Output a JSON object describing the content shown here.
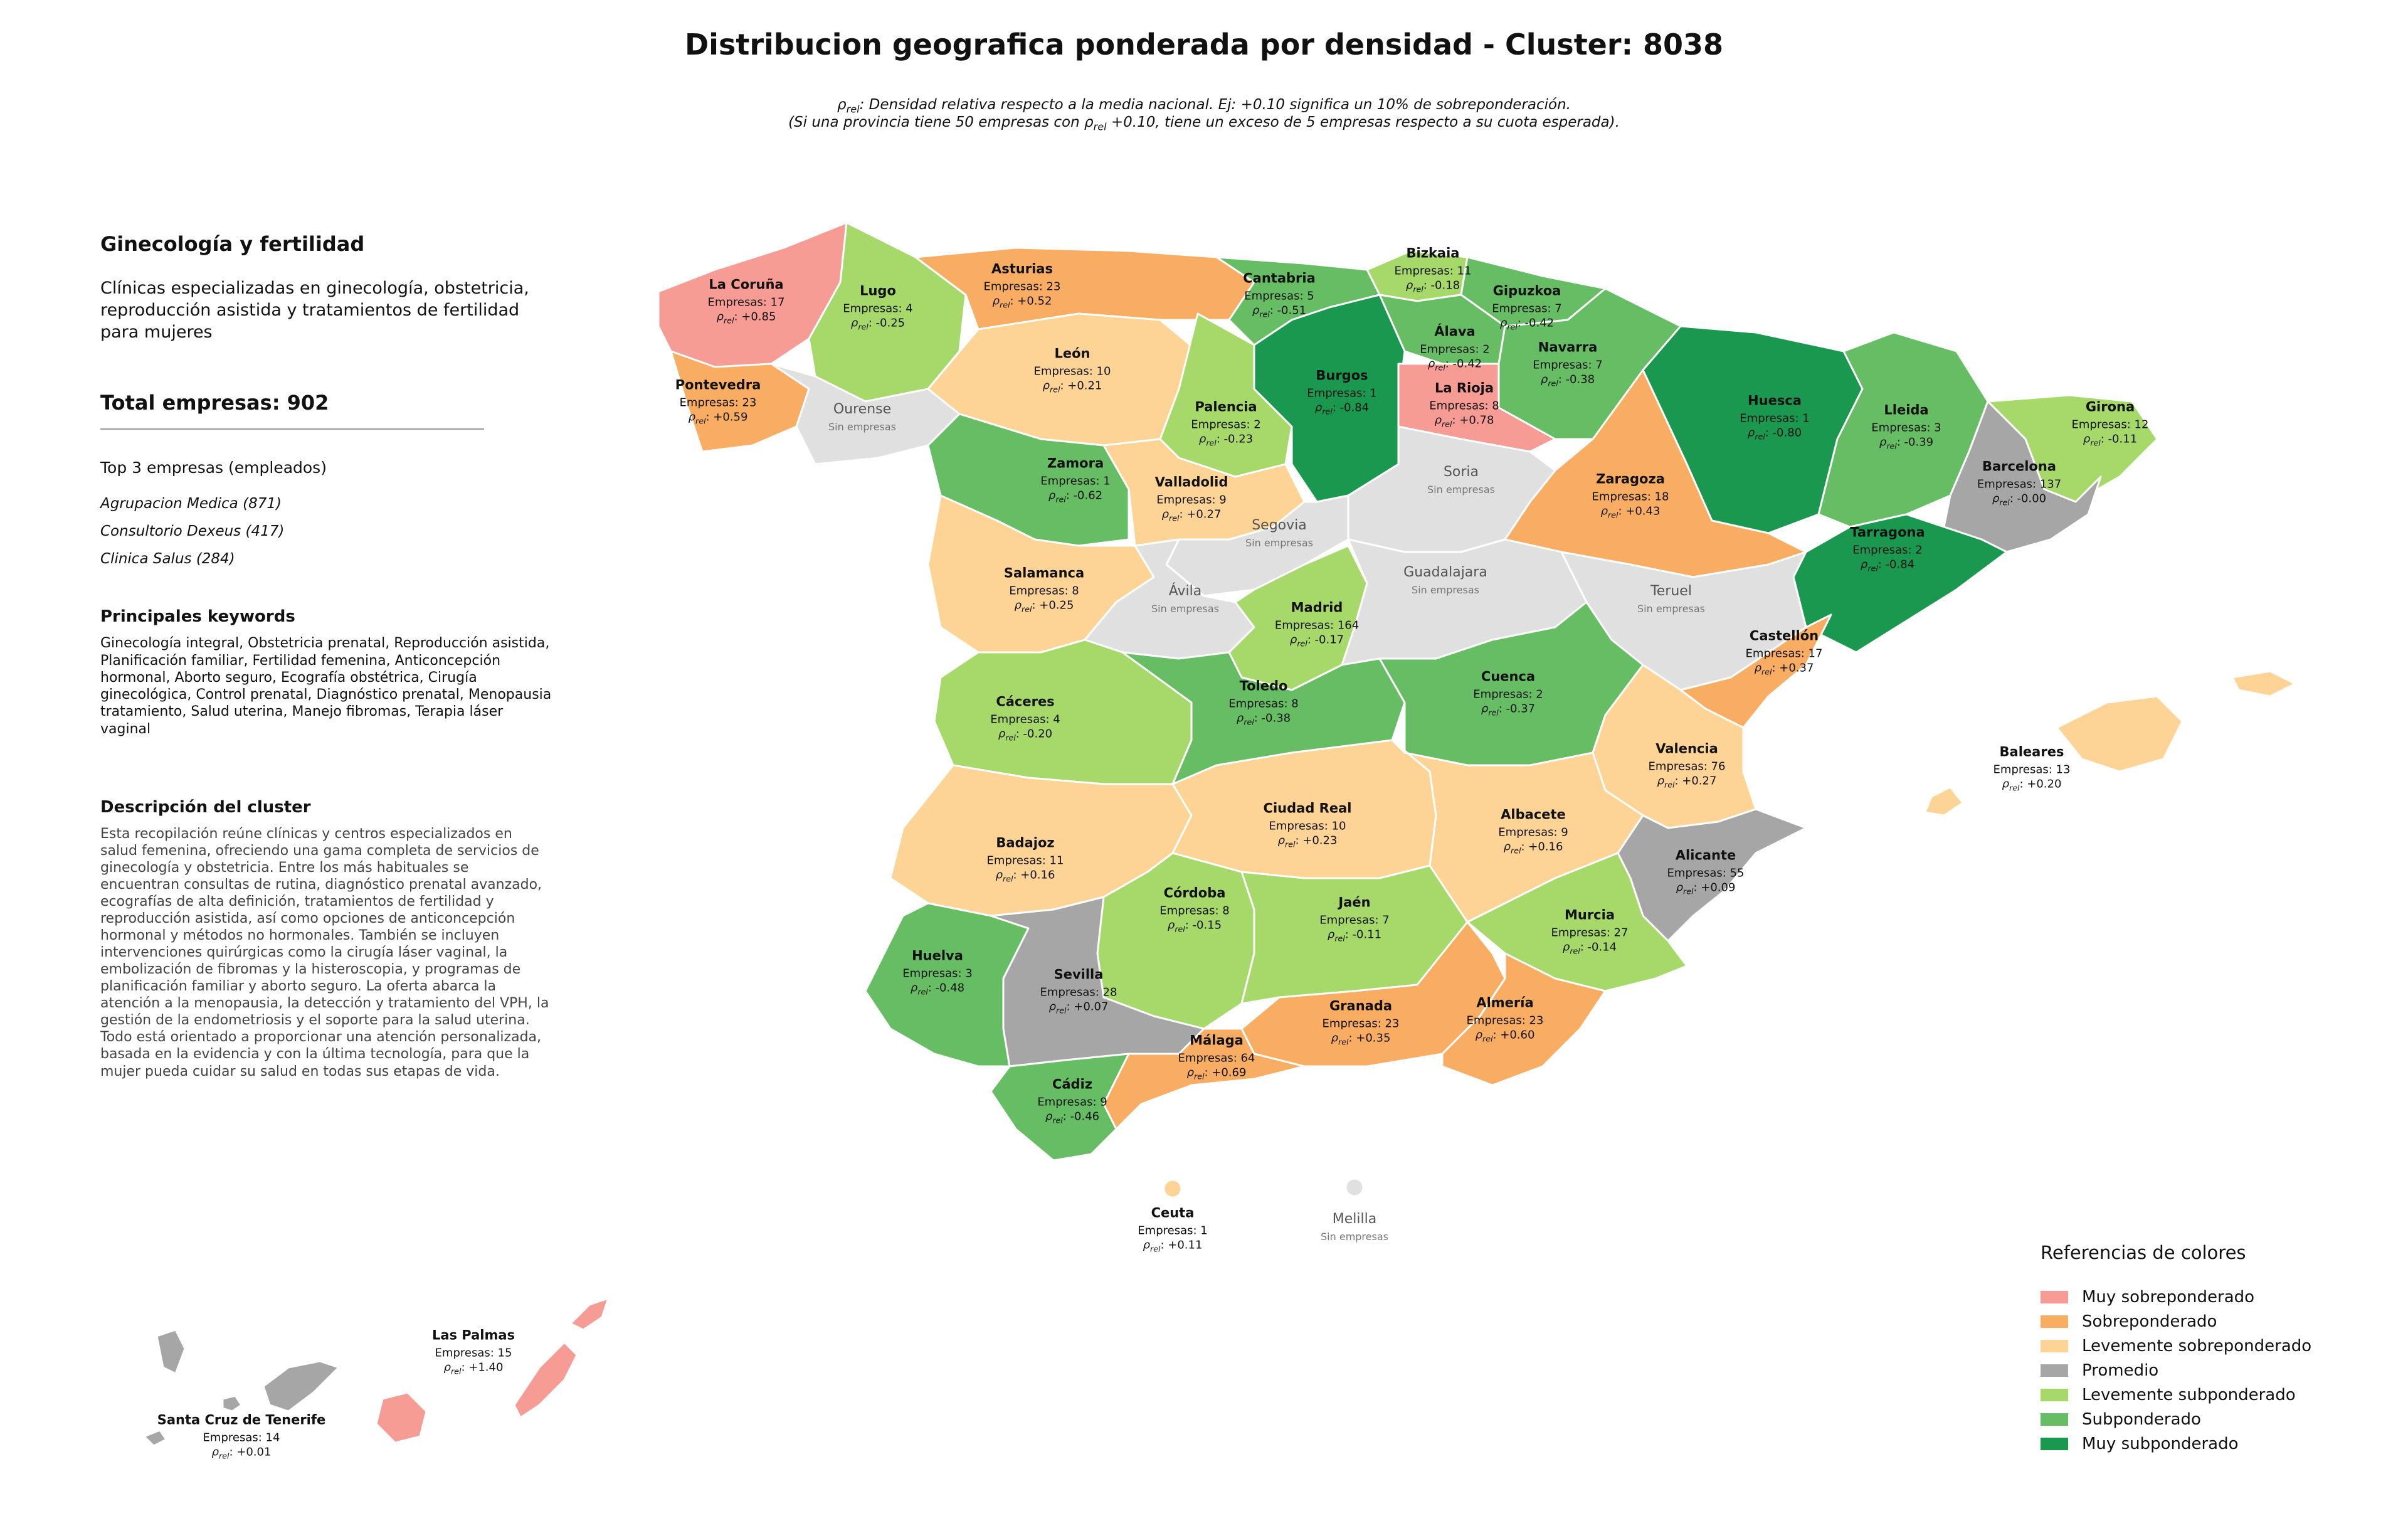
{
  "title": "Distribucion geografica ponderada por densidad - Cluster: 8038",
  "subtitle_line1_rest": ": Densidad relativa respecto a la media nacional. Ej: +0.10 significa un 10% de sobreponderación.",
  "subtitle_line2_a": "(Si una provincia tiene 50 empresas con ",
  "subtitle_line2_b": " +0.10, tiene un exceso de 5 empresas respecto a su cuota esperada).",
  "rho_symbol": "ρ",
  "rho_sub": "rel",
  "sidebar": {
    "cluster_name": "Ginecología y fertilidad",
    "cluster_short": "Clínicas especializadas en ginecología, obstetricia, reproducción asistida y tratamientos de fertilidad para mujeres",
    "total": "Total empresas: 902",
    "top_heading": "Top 3 empresas (empleados)",
    "top": [
      "Agrupacion Medica (871)",
      "Consultorio Dexeus (417)",
      "Clinica Salus (284)"
    ],
    "keywords_heading": "Principales keywords",
    "keywords": "Ginecología integral, Obstetricia prenatal, Reproducción asistida, Planificación familiar, Fertilidad femenina, Anticoncepción hormonal, Aborto seguro, Ecografía obstétrica, Cirugía ginecológica, Control prenatal, Diagnóstico prenatal, Menopausia tratamiento, Salud uterina, Manejo fibromas, Terapia láser vaginal",
    "description_heading": "Descripción del cluster",
    "description": "Esta recopilación reúne clínicas y centros especializados en salud femenina, ofreciendo una gama completa de servicios de ginecología y obstetricia. Entre los más habituales se encuentran consultas de rutina, diagnóstico prenatal avanzado, ecografías de alta definición, tratamientos de fertilidad y reproducción asistida, así como opciones de anticoncepción hormonal y métodos no hormonales. También se incluyen intervenciones quirúrgicas como la cirugía láser vaginal, la embolización de fibromas y la histeroscopia, y programas de planificación familiar y aborto seguro. La oferta abarca la atención a la menopausia, la detección y tratamiento del VPH, la gestión de la endometriosis y el soporte para la salud uterina. Todo está orientado a proporcionar una atención personalizada, basada en la evidencia y con la última tecnología, para que la mujer pueda cuidar su salud en todas sus etapas de vida."
  },
  "empresas_prefix": "Empresas: ",
  "sin_empresas": "Sin empresas",
  "colors": {
    "muy_sobre": "#f79b95",
    "sobre": "#f8ad62",
    "lev_sobre": "#fdd496",
    "promedio": "#a6a6a6",
    "lev_sub": "#a6d96a",
    "sub": "#66bd63",
    "muy_sub": "#1a9850",
    "none": "#e0e0e0"
  },
  "legend": {
    "title": "Referencias de colores",
    "items": [
      {
        "label": "Muy sobreponderado",
        "color": "#f79b95"
      },
      {
        "label": "Sobreponderado",
        "color": "#f8ad62"
      },
      {
        "label": "Levemente sobreponderado",
        "color": "#fdd496"
      },
      {
        "label": "Promedio",
        "color": "#a6a6a6"
      },
      {
        "label": "Levemente subponderado",
        "color": "#a6d96a"
      },
      {
        "label": "Subponderado",
        "color": "#66bd63"
      },
      {
        "label": "Muy subponderado",
        "color": "#1a9850"
      }
    ]
  },
  "provinces": [
    {
      "name": "La Coruña",
      "empresas": "17",
      "rho": "+0.85",
      "cat": "muy_sobre"
    },
    {
      "name": "Lugo",
      "empresas": "4",
      "rho": "-0.25",
      "cat": "lev_sub"
    },
    {
      "name": "Asturias",
      "empresas": "23",
      "rho": "+0.52",
      "cat": "sobre"
    },
    {
      "name": "Cantabria",
      "empresas": "5",
      "rho": "-0.51",
      "cat": "sub"
    },
    {
      "name": "Bizkaia",
      "empresas": "11",
      "rho": "-0.18",
      "cat": "lev_sub"
    },
    {
      "name": "Gipuzkoa",
      "empresas": "7",
      "rho": "-0.42",
      "cat": "sub"
    },
    {
      "name": "Álava",
      "empresas": "2",
      "rho": "-0.42",
      "cat": "sub"
    },
    {
      "name": "Navarra",
      "empresas": "7",
      "rho": "-0.38",
      "cat": "sub"
    },
    {
      "name": "Huesca",
      "empresas": "1",
      "rho": "-0.80",
      "cat": "muy_sub"
    },
    {
      "name": "Lleida",
      "empresas": "3",
      "rho": "-0.39",
      "cat": "sub"
    },
    {
      "name": "Girona",
      "empresas": "12",
      "rho": "-0.11",
      "cat": "lev_sub"
    },
    {
      "name": "Pontevedra",
      "empresas": "23",
      "rho": "+0.59",
      "cat": "sobre"
    },
    {
      "name": "Ourense",
      "empresas": null,
      "rho": null,
      "cat": "none"
    },
    {
      "name": "León",
      "empresas": "10",
      "rho": "+0.21",
      "cat": "lev_sobre"
    },
    {
      "name": "Palencia",
      "empresas": "2",
      "rho": "-0.23",
      "cat": "lev_sub"
    },
    {
      "name": "Burgos",
      "empresas": "1",
      "rho": "-0.84",
      "cat": "muy_sub"
    },
    {
      "name": "La Rioja",
      "empresas": "8",
      "rho": "+0.78",
      "cat": "muy_sobre"
    },
    {
      "name": "Zaragoza",
      "empresas": "18",
      "rho": "+0.43",
      "cat": "sobre"
    },
    {
      "name": "Barcelona",
      "empresas": "137",
      "rho": "-0.00",
      "cat": "promedio"
    },
    {
      "name": "Tarragona",
      "empresas": "2",
      "rho": "-0.84",
      "cat": "muy_sub"
    },
    {
      "name": "Zamora",
      "empresas": "1",
      "rho": "-0.62",
      "cat": "sub"
    },
    {
      "name": "Valladolid",
      "empresas": "9",
      "rho": "+0.27",
      "cat": "lev_sobre"
    },
    {
      "name": "Soria",
      "empresas": null,
      "rho": null,
      "cat": "none"
    },
    {
      "name": "Segovia",
      "empresas": null,
      "rho": null,
      "cat": "none"
    },
    {
      "name": "Salamanca",
      "empresas": "8",
      "rho": "+0.25",
      "cat": "lev_sobre"
    },
    {
      "name": "Ávila",
      "empresas": null,
      "rho": null,
      "cat": "none"
    },
    {
      "name": "Madrid",
      "empresas": "164",
      "rho": "-0.17",
      "cat": "lev_sub"
    },
    {
      "name": "Guadalajara",
      "empresas": null,
      "rho": null,
      "cat": "none"
    },
    {
      "name": "Teruel",
      "empresas": null,
      "rho": null,
      "cat": "none"
    },
    {
      "name": "Castellón",
      "empresas": "17",
      "rho": "+0.37",
      "cat": "sobre"
    },
    {
      "name": "Cáceres",
      "empresas": "4",
      "rho": "-0.20",
      "cat": "lev_sub"
    },
    {
      "name": "Toledo",
      "empresas": "8",
      "rho": "-0.38",
      "cat": "sub"
    },
    {
      "name": "Cuenca",
      "empresas": "2",
      "rho": "-0.37",
      "cat": "sub"
    },
    {
      "name": "Valencia",
      "empresas": "76",
      "rho": "+0.27",
      "cat": "lev_sobre"
    },
    {
      "name": "Baleares",
      "empresas": "13",
      "rho": "+0.20",
      "cat": "lev_sobre"
    },
    {
      "name": "Badajoz",
      "empresas": "11",
      "rho": "+0.16",
      "cat": "lev_sobre"
    },
    {
      "name": "Ciudad Real",
      "empresas": "10",
      "rho": "+0.23",
      "cat": "lev_sobre"
    },
    {
      "name": "Albacete",
      "empresas": "9",
      "rho": "+0.16",
      "cat": "lev_sobre"
    },
    {
      "name": "Alicante",
      "empresas": "55",
      "rho": "+0.09",
      "cat": "promedio"
    },
    {
      "name": "Córdoba",
      "empresas": "8",
      "rho": "-0.15",
      "cat": "lev_sub"
    },
    {
      "name": "Jaén",
      "empresas": "7",
      "rho": "-0.11",
      "cat": "lev_sub"
    },
    {
      "name": "Murcia",
      "empresas": "27",
      "rho": "-0.14",
      "cat": "lev_sub"
    },
    {
      "name": "Huelva",
      "empresas": "3",
      "rho": "-0.48",
      "cat": "sub"
    },
    {
      "name": "Sevilla",
      "empresas": "28",
      "rho": "+0.07",
      "cat": "promedio"
    },
    {
      "name": "Granada",
      "empresas": "23",
      "rho": "+0.35",
      "cat": "sobre"
    },
    {
      "name": "Almería",
      "empresas": "23",
      "rho": "+0.60",
      "cat": "sobre"
    },
    {
      "name": "Málaga",
      "empresas": "64",
      "rho": "+0.69",
      "cat": "sobre"
    },
    {
      "name": "Cádiz",
      "empresas": "9",
      "rho": "-0.46",
      "cat": "sub"
    },
    {
      "name": "Ceuta",
      "empresas": "1",
      "rho": "+0.11",
      "cat": "lev_sobre"
    },
    {
      "name": "Melilla",
      "empresas": null,
      "rho": null,
      "cat": "none"
    },
    {
      "name": "Las Palmas",
      "empresas": "15",
      "rho": "+1.40",
      "cat": "muy_sobre"
    },
    {
      "name": "Santa Cruz de Tenerife",
      "empresas": "14",
      "rho": "+0.01",
      "cat": "promedio"
    }
  ]
}
